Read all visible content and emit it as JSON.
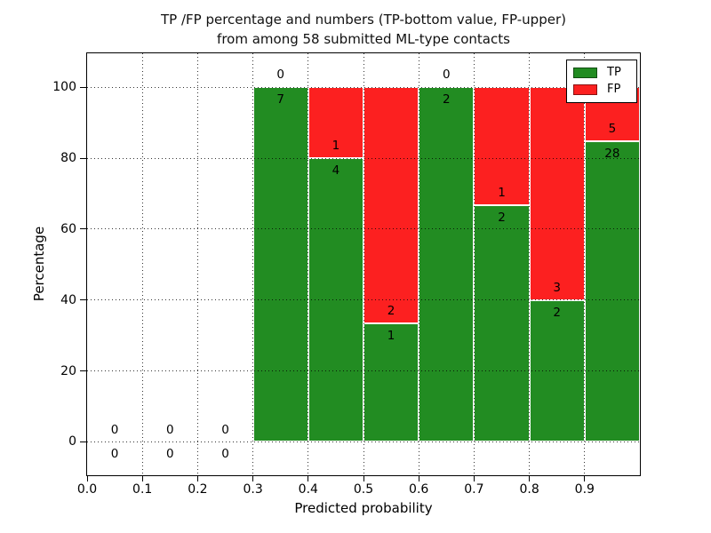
{
  "chart_data": {
    "type": "bar",
    "stacked": true,
    "title": "TP /FP percentage and numbers (TP-bottom value, FP-upper) from among 58 submitted ML-type contacts",
    "title_lines": [
      "TP /FP percentage and numbers (TP-bottom value, FP-upper)",
      "from among 58 submitted ML-type contacts"
    ],
    "xlabel": "Predicted probability",
    "ylabel": "Percentage",
    "total_contacts_shown_in_title": 58,
    "xlim": [
      0.0,
      1.0
    ],
    "ylim": [
      -9.4,
      109.6
    ],
    "grid": true,
    "grid_style": "dotted",
    "legend_position": "upper right",
    "series": [
      {
        "name": "TP",
        "color": "#228c22"
      },
      {
        "name": "FP",
        "color": "#fc2020"
      }
    ],
    "bin_width": 0.1,
    "bins": [
      {
        "x0": 0.0,
        "x1": 0.1,
        "tp": 0,
        "fp": 0
      },
      {
        "x0": 0.1,
        "x1": 0.2,
        "tp": 0,
        "fp": 0
      },
      {
        "x0": 0.2,
        "x1": 0.3,
        "tp": 0,
        "fp": 0
      },
      {
        "x0": 0.3,
        "x1": 0.4,
        "tp": 7,
        "fp": 0
      },
      {
        "x0": 0.4,
        "x1": 0.5,
        "tp": 4,
        "fp": 1
      },
      {
        "x0": 0.5,
        "x1": 0.6,
        "tp": 1,
        "fp": 2
      },
      {
        "x0": 0.6,
        "x1": 0.7,
        "tp": 2,
        "fp": 0
      },
      {
        "x0": 0.7,
        "x1": 0.8,
        "tp": 2,
        "fp": 1
      },
      {
        "x0": 0.8,
        "x1": 0.9,
        "tp": 2,
        "fp": 3
      },
      {
        "x0": 0.9,
        "x1": 1.0,
        "tp": 28,
        "fp": 5
      }
    ],
    "xticks": [
      "0.0",
      "0.1",
      "0.2",
      "0.3",
      "0.4",
      "0.5",
      "0.6",
      "0.7",
      "0.8",
      "0.9"
    ],
    "yticks": [
      0,
      20,
      40,
      60,
      80,
      100
    ]
  }
}
